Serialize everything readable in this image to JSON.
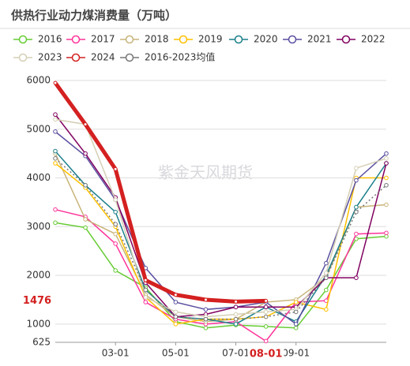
{
  "chart_data": {
    "type": "line",
    "title": "供热行业动力煤消费量（万吨）",
    "watermark": "紫金天风期货",
    "categories": [
      null,
      null,
      "03-01",
      null,
      "05-01",
      null,
      "07-01",
      null,
      "09-01",
      null,
      null,
      null
    ],
    "ylim": [
      625,
      6000
    ],
    "yticks": [
      625,
      1000,
      2000,
      3000,
      4000,
      5000,
      6000
    ],
    "grid": true,
    "crosshair": {
      "x": "08-01",
      "y": 1476
    },
    "series": [
      {
        "name": "2016",
        "color": "#66cc33",
        "values": [
          3080,
          2980,
          2100,
          1750,
          1050,
          920,
          980,
          950,
          920,
          1700,
          2750,
          2800
        ]
      },
      {
        "name": "2017",
        "color": "#ff3399",
        "values": [
          3350,
          3200,
          2650,
          1450,
          1100,
          1000,
          1050,
          650,
          1450,
          1480,
          2850,
          2870
        ]
      },
      {
        "name": "2018",
        "color": "#c8b47a",
        "values": [
          4500,
          3150,
          2850,
          1600,
          1150,
          1050,
          1100,
          1450,
          1500,
          1950,
          3400,
          3450
        ]
      },
      {
        "name": "2019",
        "color": "#ffc000",
        "values": [
          4300,
          3800,
          3000,
          1550,
          1000,
          1100,
          1100,
          1150,
          1450,
          1300,
          4000,
          4000
        ]
      },
      {
        "name": "2020",
        "color": "#1a7f8a",
        "values": [
          4550,
          3850,
          3300,
          1700,
          1150,
          1100,
          1000,
          1350,
          1050,
          2000,
          3400,
          4300
        ]
      },
      {
        "name": "2021",
        "color": "#5a4fa0",
        "values": [
          4950,
          4450,
          3550,
          2150,
          1450,
          1300,
          1350,
          1450,
          1000,
          2250,
          3950,
          4500
        ]
      },
      {
        "name": "2022",
        "color": "#800060",
        "values": [
          5300,
          4500,
          3600,
          1850,
          1150,
          1200,
          1350,
          1350,
          1350,
          1950,
          1950,
          4300
        ]
      },
      {
        "name": "2023",
        "color": "#d4cfb4",
        "values": [
          5200,
          5100,
          3550,
          1550,
          1250,
          1150,
          1200,
          1250,
          1300,
          2050,
          4200,
          4400
        ]
      },
      {
        "name": "2024",
        "color": "#d42020",
        "width": 5,
        "values": [
          5950,
          5100,
          4180,
          1900,
          1600,
          1500,
          1460,
          1476,
          null,
          null,
          null,
          null
        ]
      },
      {
        "name": "2016-2023均值",
        "color": "#777777",
        "dashed": true,
        "values": [
          4400,
          3850,
          3050,
          1700,
          1150,
          1100,
          1100,
          1150,
          1250,
          1950,
          3300,
          3850
        ]
      }
    ]
  }
}
